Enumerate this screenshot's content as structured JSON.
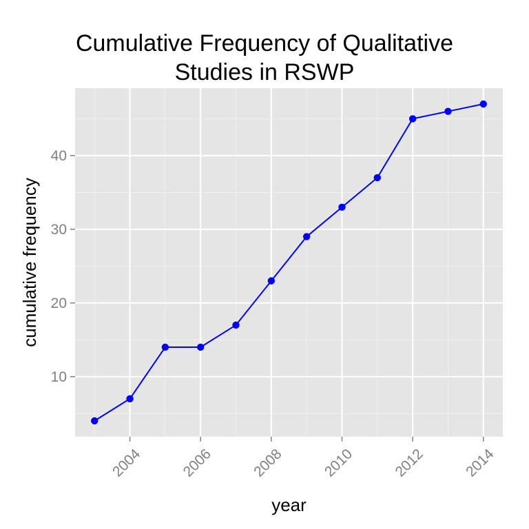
{
  "chart_data": {
    "type": "line",
    "title_lines": [
      "Cumulative Frequency of Qualitative",
      "Studies in RSWP"
    ],
    "xlabel": "year",
    "ylabel": "cumulative frequency",
    "x": [
      2003,
      2004,
      2005,
      2006,
      2007,
      2008,
      2009,
      2010,
      2011,
      2012,
      2013,
      2014
    ],
    "y": [
      4,
      7,
      14,
      14,
      17,
      23,
      29,
      33,
      37,
      45,
      46,
      47
    ],
    "x_ticks": [
      "2004",
      "2006",
      "2008",
      "2010",
      "2012",
      "2014"
    ],
    "y_ticks": [
      "10",
      "20",
      "30",
      "40"
    ],
    "xlim": [
      2002.45,
      2014.55
    ],
    "ylim": [
      1.85,
      49.15
    ],
    "grid": true,
    "series_color": "#0000ff",
    "panel_color": "#e5e5e5",
    "grid_color": "#ffffff"
  }
}
